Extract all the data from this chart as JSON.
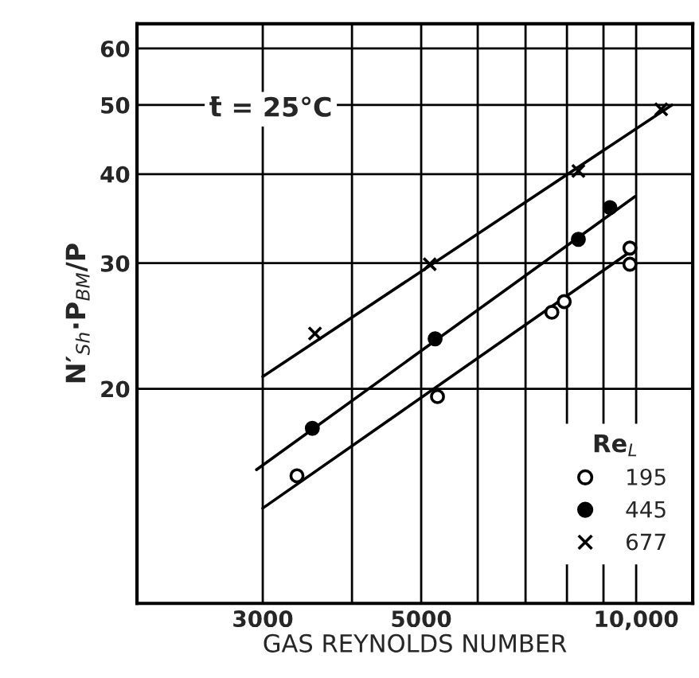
{
  "chart_data": {
    "type": "scatter",
    "xlabel": "GAS REYNOLDS NUMBER",
    "ylabel": "N′$_{Sh}$·P$_{BM}$/P",
    "legend_title": "Re$_{L}$",
    "log": "xy",
    "grid": true,
    "legend": "bottom right",
    "xlim": [
      2000,
      12000
    ],
    "ylim": [
      10,
      65
    ],
    "xticks": [
      3000,
      {
        "value": 4000,
        "label": null
      },
      5000,
      {
        "value": 6000,
        "label": null
      },
      {
        "value": 7000,
        "label": null
      },
      {
        "value": 8000,
        "label": null
      },
      {
        "value": 9000,
        "label": null
      },
      {
        "value": 10000,
        "label": "10,000"
      }
    ],
    "yticks": [
      20,
      30,
      40,
      50,
      60
    ],
    "annotations": [
      "t̄ = 25°C"
    ],
    "series": [
      {
        "name": "195",
        "marker": "circle",
        "color": "#ffffff",
        "x": [
          3350,
          5270,
          7620,
          7930,
          9800,
          9800
        ],
        "values": [
          15.1,
          19.5,
          25.6,
          26.5,
          31.5,
          29.9
        ]
      },
      {
        "name": "445",
        "marker": "circle",
        "color": "#000000",
        "x": [
          3520,
          5230,
          8300,
          9190
        ],
        "values": [
          17.6,
          23.5,
          32.4,
          35.9
        ]
      },
      {
        "name": "677",
        "marker": "cross",
        "color": "#000000",
        "x": [
          3550,
          5140,
          8300,
          10840
        ],
        "values": [
          23.9,
          29.9,
          40.4,
          49.3
        ]
      },
      {
        "type": "line",
        "line_style": "solid",
        "color": "#000000",
        "x": [
          3000,
          9840
        ],
        "values": [
          13.6,
          31.2
        ]
      },
      {
        "type": "line",
        "line_style": "solid",
        "color": "#000000",
        "x": [
          2940,
          9960
        ],
        "values": [
          15.4,
          37.2
        ]
      },
      {
        "type": "line",
        "line_style": "solid",
        "color": "#000000",
        "x": [
          3000,
          11220
        ],
        "values": [
          20.8,
          50.0
        ]
      }
    ]
  }
}
